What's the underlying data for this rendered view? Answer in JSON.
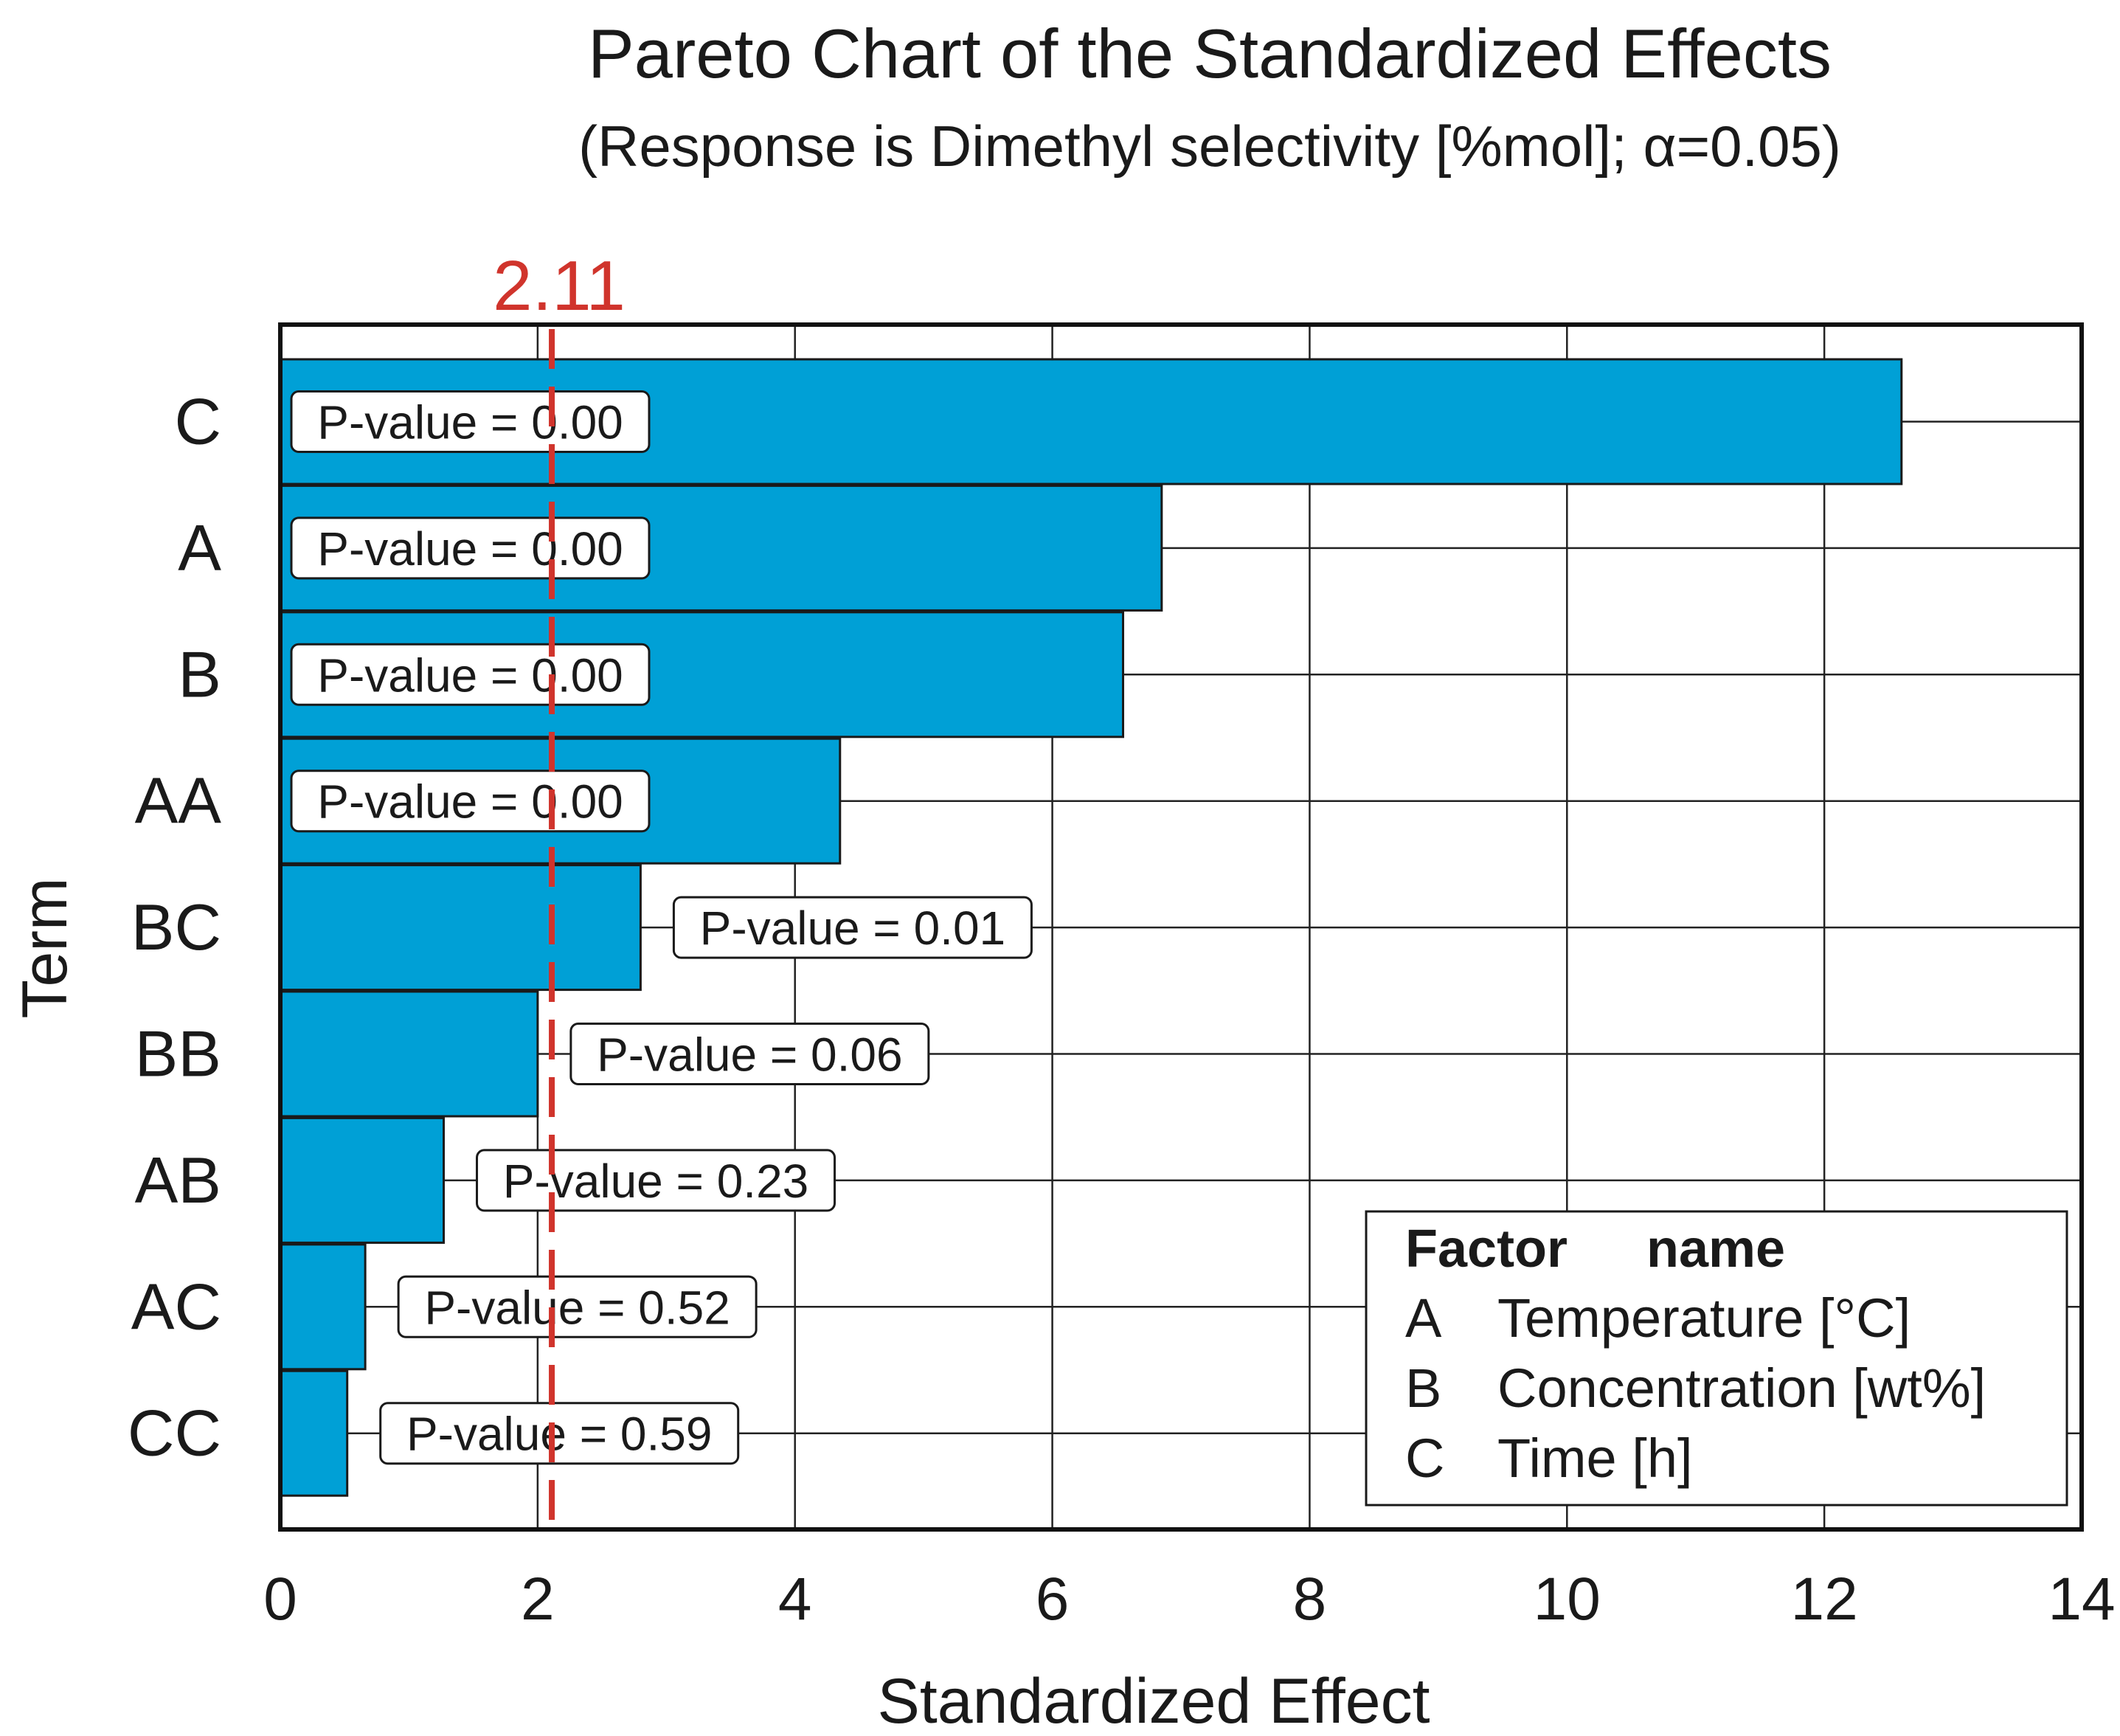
{
  "chart_data": {
    "type": "bar",
    "orientation": "horizontal",
    "title": "Pareto Chart of the Standardized Effects",
    "subtitle": "(Response is Dimethyl selectivity [%mol]; α=0.05)",
    "xlabel": "Standardized Effect",
    "ylabel": "Term",
    "xlim": [
      0,
      14
    ],
    "xticks": [
      0,
      2,
      4,
      6,
      8,
      10,
      12,
      14
    ],
    "grid": true,
    "categories": [
      "C",
      "A",
      "B",
      "AA",
      "BC",
      "BB",
      "AB",
      "AC",
      "CC"
    ],
    "values": [
      12.6,
      6.85,
      6.55,
      4.35,
      2.8,
      2.0,
      1.27,
      0.66,
      0.52
    ],
    "p_value_labels": [
      "P-value = 0.00",
      "P-value = 0.00",
      "P-value = 0.00",
      "P-value = 0.00",
      "P-value = 0.01",
      "P-value = 0.06",
      "P-value = 0.23",
      "P-value = 0.52",
      "P-value = 0.59"
    ],
    "reference_line": {
      "value": 2.11,
      "label": "2.11",
      "style": "dashed",
      "color": "#d0342c"
    },
    "bar_color": "#00a0d6",
    "legend": {
      "placement": "bottom-right",
      "header": {
        "factor": "Factor",
        "name": "name"
      },
      "rows": [
        {
          "factor": "A",
          "name": "Temperature [°C]"
        },
        {
          "factor": "B",
          "name": "Concentration [wt%]"
        },
        {
          "factor": "C",
          "name": "Time [h]"
        }
      ]
    }
  }
}
